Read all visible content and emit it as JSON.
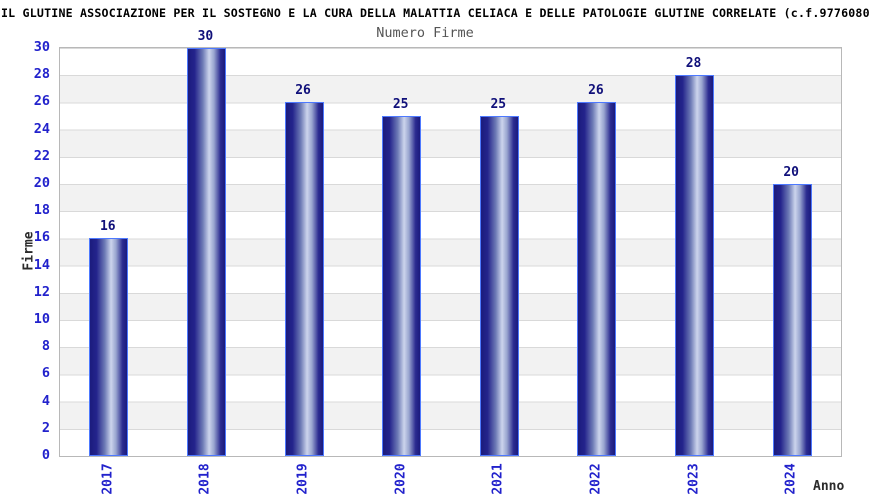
{
  "chart_data": {
    "type": "bar",
    "title": "IL GLUTINE ASSOCIAZIONE PER IL SOSTEGNO E LA CURA DELLA MALATTIA CELIACA E DELLE PATOLOGIE GLUTINE CORRELATE (c.f.9776080",
    "subtitle": "Numero Firme",
    "xlabel": "Anno",
    "ylabel": "Firme",
    "categories": [
      "2017",
      "2018",
      "2019",
      "2020",
      "2021",
      "2022",
      "2023",
      "2024"
    ],
    "values": [
      16,
      30,
      26,
      25,
      25,
      26,
      28,
      20
    ],
    "ylim": [
      0,
      30
    ],
    "ytick_step": 2,
    "legend": "none",
    "grid": "alternating horizontal bands every 2 units, white and light gray, with thin gray separator lines",
    "bar_style": "vertical cylinder gradient, dark navy edges with pale blue center highlight, bright blue 1px outline",
    "colors": {
      "title": "#000000",
      "subtitle": "#555555",
      "axis_title": "#2b2b2b",
      "tick_label": "#2222cc",
      "bar_value_label": "#10107a",
      "bar_dark": "#1b1b7d",
      "bar_light": "#ccd4ec",
      "bar_border": "#4d79ff",
      "band_gray": "#f2f2f2",
      "grid_line": "#d9d9d9",
      "plot_border": "#b8b8b8",
      "background": "#ffffff"
    }
  }
}
